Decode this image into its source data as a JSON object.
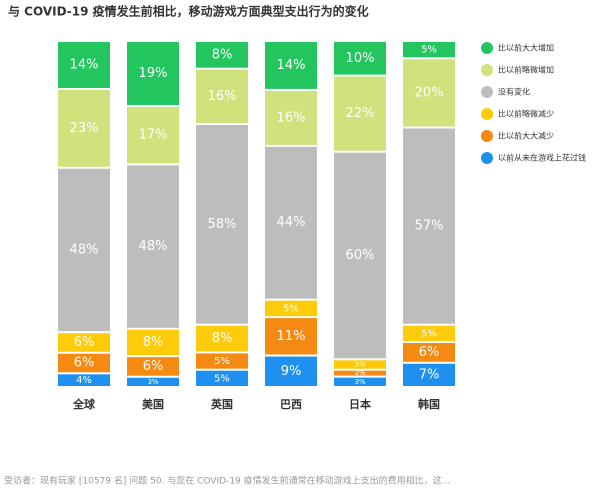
{
  "chart_data": {
    "type": "stacked-bar",
    "title": "与 COVID-19 疫情发生前相比，移动游戏方面典型支出行为的变化",
    "categories": [
      "全球",
      "美国",
      "英国",
      "巴西",
      "日本",
      "韩国"
    ],
    "series": [
      {
        "name": "比以前大大增加",
        "color": "#22c55e",
        "values": [
          14,
          19,
          8,
          14,
          10,
          5
        ],
        "value_labels": [
          "14%",
          "19%",
          "8%",
          "14%",
          "10%",
          "5%"
        ]
      },
      {
        "name": "比以前略微增加",
        "color": "#cfe27c",
        "values": [
          23,
          17,
          16,
          16,
          22,
          20
        ],
        "value_labels": [
          "23%",
          "17%",
          "16%",
          "16%",
          "22%",
          "20%"
        ]
      },
      {
        "name": "没有变化",
        "color": "#bdbdbd",
        "values": [
          48,
          48,
          58,
          44,
          60,
          57
        ],
        "value_labels": [
          "48%",
          "48%",
          "58%",
          "44%",
          "60%",
          "57%"
        ]
      },
      {
        "name": "比以前略微减少",
        "color": "#fdcb0a",
        "values": [
          6,
          8,
          8,
          5,
          3,
          5
        ],
        "value_labels": [
          "6%",
          "8%",
          "8%",
          "5%",
          "3%",
          "5%"
        ]
      },
      {
        "name": "比以前大大减少",
        "color": "#f58a12",
        "values": [
          6,
          6,
          5,
          11,
          2,
          6
        ],
        "value_labels": [
          "6%",
          "6%",
          "5%",
          "11%",
          "2%",
          "6%"
        ]
      },
      {
        "name": "以前从未在游戏上花过钱",
        "color": "#1e90f0",
        "values": [
          4,
          3,
          5,
          9,
          3,
          7
        ],
        "value_labels": [
          "4%",
          "3%",
          "5%",
          "9%",
          "3%",
          "7%"
        ]
      }
    ],
    "legend": "right",
    "footnote": "受访者：现有玩家 [10579 名] 问题 50. 与您在 COVID-19 疫情发生前通常在移动游戏上支出的费用相比，这..."
  }
}
